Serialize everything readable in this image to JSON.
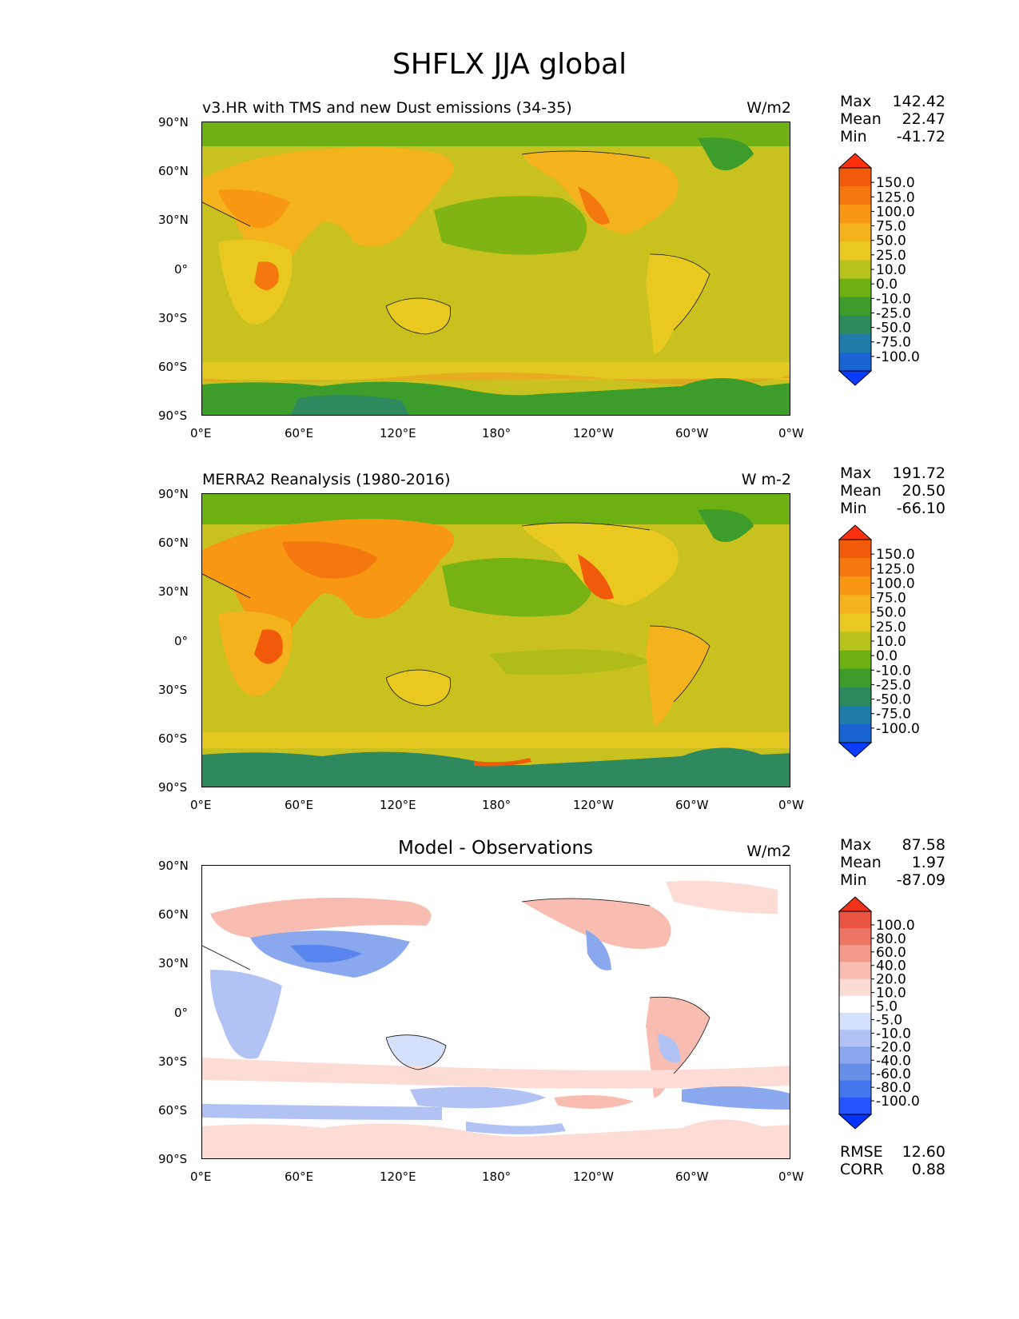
{
  "figure": {
    "title": "SHFLX JJA global"
  },
  "axes": {
    "lat_labels": [
      "90°N",
      "60°N",
      "30°N",
      "0°",
      "30°S",
      "60°S",
      "90°S"
    ],
    "lon_labels": [
      "0°E",
      "60°E",
      "120°E",
      "180°",
      "120°W",
      "60°W",
      "0°W"
    ]
  },
  "colors": {
    "seq": [
      "#0a3cff",
      "#1764d2",
      "#1f7ca8",
      "#2e8a5e",
      "#3d9d2a",
      "#6db012",
      "#b8c21c",
      "#e9c920",
      "#f4b21c",
      "#f79712",
      "#f5780e",
      "#f05a08",
      "#ff3010"
    ],
    "diff": [
      "#0033ff",
      "#2255ff",
      "#4477ee",
      "#6690e8",
      "#8aa8ee",
      "#b0c3f4",
      "#d5e0fa",
      "#ffffff",
      "#fcdcd5",
      "#f8bcb0",
      "#f2998a",
      "#ec7564",
      "#e85440",
      "#f03218"
    ]
  },
  "panels": [
    {
      "title": "v3.HR with TMS and new Dust emissions (34-35)",
      "units": "W/m2",
      "stats": {
        "max_label": "Max",
        "max": "142.42",
        "mean_label": "Mean",
        "mean": "22.47",
        "min_label": "Min",
        "min": "-41.72"
      },
      "colorbar_labels": [
        "150.0",
        "125.0",
        "100.0",
        "75.0",
        "50.0",
        "25.0",
        "10.0",
        "0.0",
        "-10.0",
        "-25.0",
        "-50.0",
        "-75.0",
        "-100.0"
      ]
    },
    {
      "title": "MERRA2 Reanalysis (1980-2016)",
      "units": "W m-2",
      "stats": {
        "max_label": "Max",
        "max": "191.72",
        "mean_label": "Mean",
        "mean": "20.50",
        "min_label": "Min",
        "min": "-66.10"
      },
      "colorbar_labels": [
        "150.0",
        "125.0",
        "100.0",
        "75.0",
        "50.0",
        "25.0",
        "10.0",
        "0.0",
        "-10.0",
        "-25.0",
        "-50.0",
        "-75.0",
        "-100.0"
      ]
    },
    {
      "title": "Model - Observations",
      "units": "W/m2",
      "stats": {
        "max_label": "Max",
        "max": "87.58",
        "mean_label": "Mean",
        "mean": "1.97",
        "min_label": "Min",
        "min": "-87.09"
      },
      "colorbar_labels": [
        "100.0",
        "80.0",
        "60.0",
        "40.0",
        "20.0",
        "10.0",
        "5.0",
        "-5.0",
        "-10.0",
        "-20.0",
        "-40.0",
        "-60.0",
        "-80.0",
        "-100.0"
      ],
      "extra": {
        "rmse_label": "RMSE",
        "rmse": "12.60",
        "corr_label": "CORR",
        "corr": "0.88"
      }
    }
  ],
  "chart_data": [
    {
      "type": "heatmap",
      "title": "v3.HR with TMS and new Dust emissions (34-35)",
      "units": "W/m2",
      "xlabel": "",
      "ylabel": "",
      "xlim": [
        0,
        360
      ],
      "ylim": [
        -90,
        90
      ],
      "x_ticks": [
        "0°E",
        "60°E",
        "120°E",
        "180°",
        "120°W",
        "60°W",
        "0°W"
      ],
      "y_ticks": [
        "90°N",
        "60°N",
        "30°N",
        "0°",
        "30°S",
        "60°S",
        "90°S"
      ],
      "levels": [
        -100,
        -75,
        -50,
        -25,
        -10,
        0,
        10,
        25,
        50,
        75,
        100,
        125,
        150
      ],
      "max": 142.42,
      "mean": 22.47,
      "min": -41.72
    },
    {
      "type": "heatmap",
      "title": "MERRA2 Reanalysis (1980-2016)",
      "units": "W m-2",
      "xlabel": "",
      "ylabel": "",
      "xlim": [
        0,
        360
      ],
      "ylim": [
        -90,
        90
      ],
      "x_ticks": [
        "0°E",
        "60°E",
        "120°E",
        "180°",
        "120°W",
        "60°W",
        "0°W"
      ],
      "y_ticks": [
        "90°N",
        "60°N",
        "30°N",
        "0°",
        "30°S",
        "60°S",
        "90°S"
      ],
      "levels": [
        -100,
        -75,
        -50,
        -25,
        -10,
        0,
        10,
        25,
        50,
        75,
        100,
        125,
        150
      ],
      "max": 191.72,
      "mean": 20.5,
      "min": -66.1
    },
    {
      "type": "heatmap",
      "title": "Model - Observations",
      "units": "W/m2",
      "xlabel": "",
      "ylabel": "",
      "xlim": [
        0,
        360
      ],
      "ylim": [
        -90,
        90
      ],
      "x_ticks": [
        "0°E",
        "60°E",
        "120°E",
        "180°",
        "120°W",
        "60°W",
        "0°W"
      ],
      "y_ticks": [
        "90°N",
        "60°N",
        "30°N",
        "0°",
        "30°S",
        "60°S",
        "90°S"
      ],
      "levels": [
        -100,
        -80,
        -60,
        -40,
        -20,
        -10,
        -5,
        5,
        10,
        20,
        40,
        60,
        80,
        100
      ],
      "max": 87.58,
      "mean": 1.97,
      "min": -87.09,
      "rmse": 12.6,
      "corr": 0.88
    }
  ]
}
